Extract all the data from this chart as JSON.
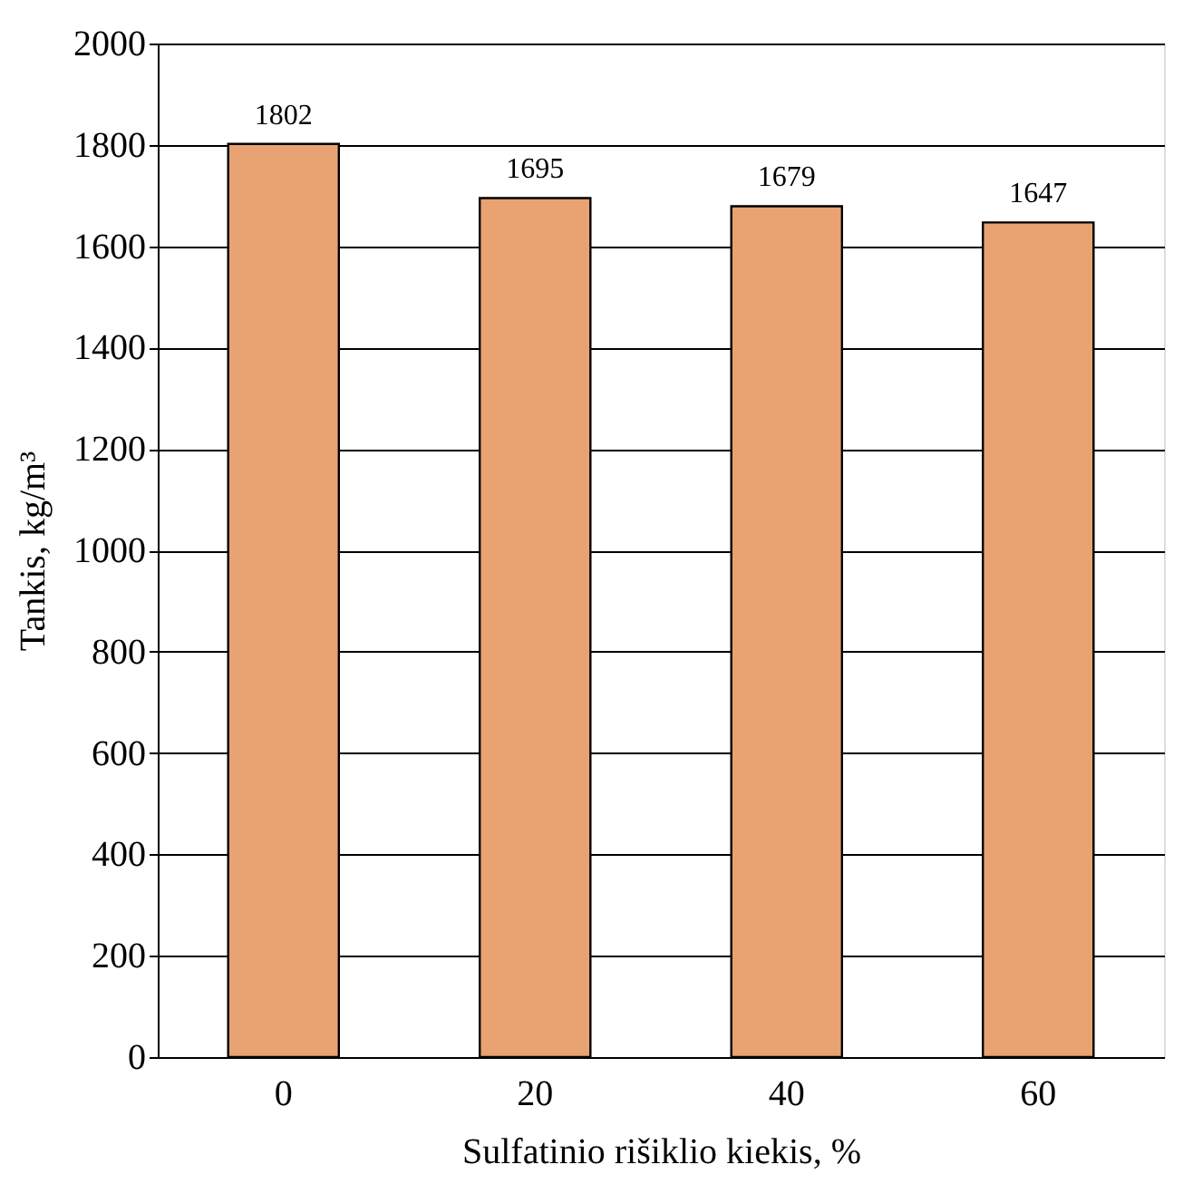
{
  "chart_data": {
    "type": "bar",
    "xlabel": "Sulfatinio rišiklio kiekis, %",
    "ylabel": "Tankis, kg/m³",
    "categories": [
      "0",
      "20",
      "40",
      "60"
    ],
    "values": [
      1802,
      1695,
      1679,
      1647
    ],
    "color": "#e9a271",
    "ylim": [
      0,
      2000
    ],
    "yticks": [
      0,
      200,
      400,
      600,
      800,
      1000,
      1200,
      1400,
      1600,
      1800,
      2000
    ],
    "grid": "y",
    "data_labels": true
  }
}
